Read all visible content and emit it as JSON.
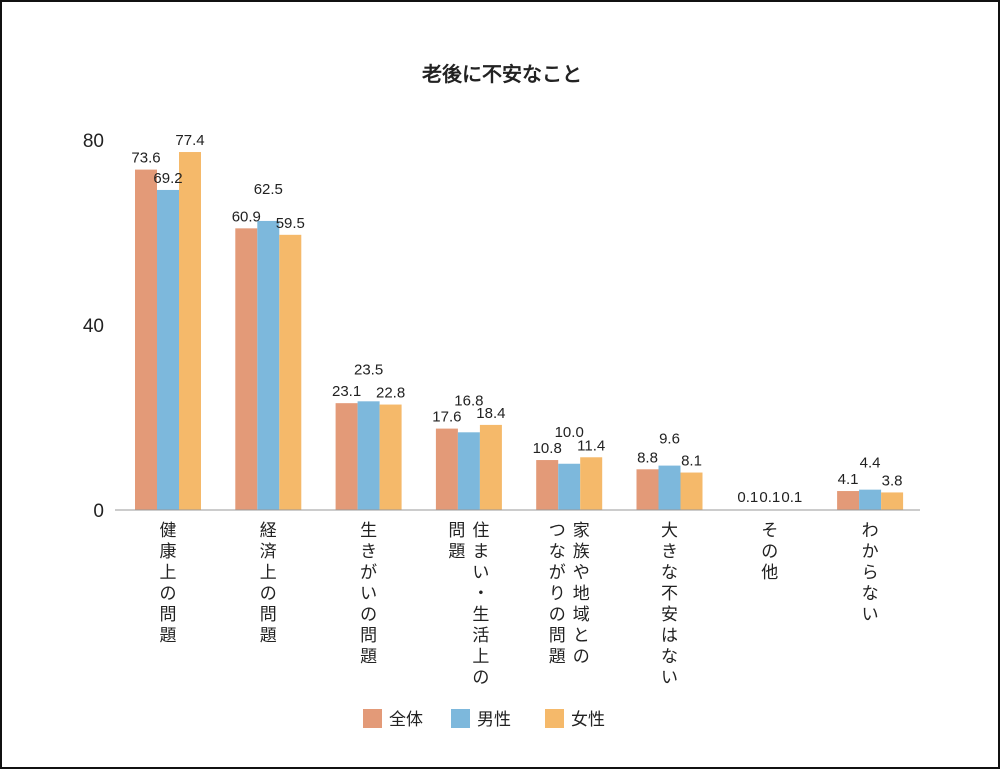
{
  "chart_data": {
    "type": "bar",
    "title": "老後に不安なこと",
    "categories": [
      "健康上の問題",
      "経済上の問題",
      "生きがいの問題",
      "住まい・生活上の問題",
      "家族や地域とのつながりの問題",
      "大きな不安はない",
      "その他",
      "わからない"
    ],
    "category_lines": [
      [
        "健康上の問題"
      ],
      [
        "経済上の問題"
      ],
      [
        "生きがいの問題"
      ],
      [
        "住まい・生活上の",
        "問題"
      ],
      [
        "家族や地域との",
        "つながりの問題"
      ],
      [
        "大きな不安はない"
      ],
      [
        "その他"
      ],
      [
        "わからない"
      ]
    ],
    "series": [
      {
        "name": "全体",
        "color": "#e39a78",
        "values": [
          73.6,
          60.9,
          23.1,
          17.6,
          10.8,
          8.8,
          0.1,
          4.1
        ]
      },
      {
        "name": "男性",
        "color": "#7db8dc",
        "values": [
          69.2,
          62.5,
          23.5,
          16.8,
          10.0,
          9.6,
          0.1,
          4.4
        ]
      },
      {
        "name": "女性",
        "color": "#f5b96a",
        "values": [
          77.4,
          59.5,
          22.8,
          18.4,
          11.4,
          8.1,
          0.1,
          3.8
        ]
      }
    ],
    "ylim": [
      0,
      80
    ],
    "yticks": [
      "0",
      "40",
      "80"
    ],
    "legend_position": "bottom",
    "grid": false
  }
}
